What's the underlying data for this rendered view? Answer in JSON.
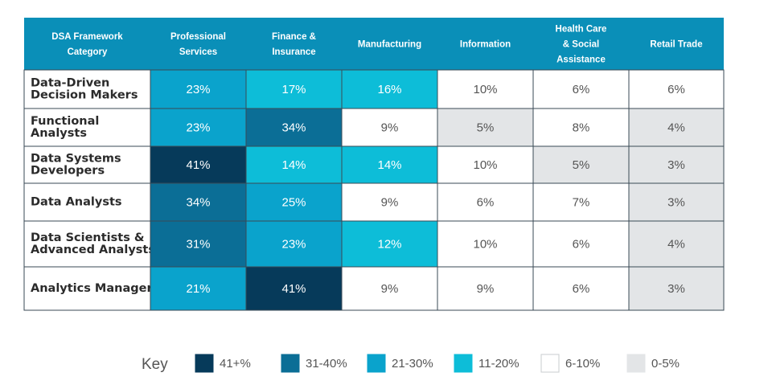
{
  "chart_data": {
    "type": "table",
    "corner_header": [
      "DSA Framework",
      "Category"
    ],
    "columns": [
      {
        "key": "professional_services",
        "label": [
          "Professional",
          "Services"
        ]
      },
      {
        "key": "finance_insurance",
        "label": [
          "Finance &",
          "Insurance"
        ]
      },
      {
        "key": "manufacturing",
        "label": [
          "Manufacturing"
        ]
      },
      {
        "key": "information",
        "label": [
          "Information"
        ]
      },
      {
        "key": "health_care",
        "label": [
          "Health Care",
          "& Social",
          "Assistance"
        ]
      },
      {
        "key": "retail_trade",
        "label": [
          "Retail Trade"
        ]
      }
    ],
    "rows": [
      {
        "label": [
          "Data-Driven",
          "Decision Makers"
        ],
        "values": [
          23,
          17,
          16,
          10,
          6,
          6
        ]
      },
      {
        "label": [
          "Functional",
          "Analysts"
        ],
        "values": [
          23,
          34,
          9,
          5,
          8,
          4
        ]
      },
      {
        "label": [
          "Data Systems",
          "Developers"
        ],
        "values": [
          41,
          14,
          14,
          10,
          5,
          3
        ]
      },
      {
        "label": [
          "Data Analysts"
        ],
        "values": [
          34,
          25,
          9,
          6,
          7,
          3
        ]
      },
      {
        "label": [
          "Data Scientists &",
          "Advanced Analysts"
        ],
        "values": [
          31,
          23,
          12,
          10,
          6,
          4
        ]
      },
      {
        "label": [
          "Analytics Managers"
        ],
        "values": [
          21,
          41,
          9,
          9,
          6,
          3
        ]
      }
    ],
    "value_suffix": "%",
    "key": {
      "title": "Key",
      "bins": [
        {
          "label": "41+%",
          "min": 41,
          "max": 100,
          "color": "#063a5a",
          "text_color": "#ffffff"
        },
        {
          "label": "31-40%",
          "min": 31,
          "max": 40,
          "color": "#0b6e96",
          "text_color": "#ffffff"
        },
        {
          "label": "21-30%",
          "min": 21,
          "max": 30,
          "color": "#0aa3cc",
          "text_color": "#ffffff"
        },
        {
          "label": "11-20%",
          "min": 11,
          "max": 20,
          "color": "#0dbdd8",
          "text_color": "#ffffff"
        },
        {
          "label": "6-10%",
          "min": 6,
          "max": 10,
          "color": "#ffffff",
          "text_color": "#555555"
        },
        {
          "label": "0-5%",
          "min": 0,
          "max": 5,
          "color": "#e3e5e7",
          "text_color": "#555555"
        }
      ]
    },
    "header_color": "#0a8fb8",
    "border_color": "#3a4a55"
  }
}
